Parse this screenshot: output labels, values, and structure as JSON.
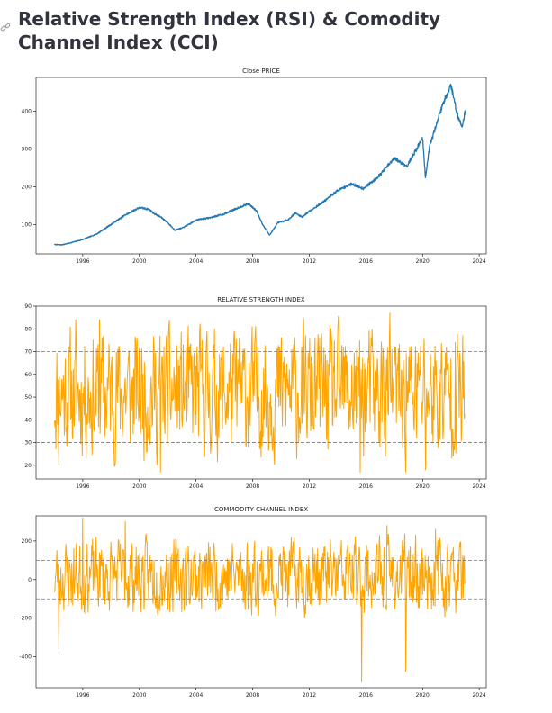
{
  "page": {
    "title": "Relative Strength Index (RSI) & Comodity Channel Index (CCI)",
    "link_icon": "link-icon"
  },
  "charts": [
    {
      "id": "price",
      "type": "line",
      "title": "Close PRICE",
      "color": "#1f77b4",
      "xlim": [
        1992.7,
        2024.5
      ],
      "ylim": [
        22,
        490
      ],
      "xticks": [
        1996,
        2000,
        2004,
        2008,
        2012,
        2016,
        2020,
        2024
      ],
      "yticks": [
        100,
        200,
        300,
        400
      ],
      "reference_lines": [],
      "anchors": [
        [
          1994.0,
          47
        ],
        [
          1994.5,
          46
        ],
        [
          1995.0,
          50
        ],
        [
          1996.0,
          60
        ],
        [
          1997.0,
          75
        ],
        [
          1998.0,
          100
        ],
        [
          1999.0,
          125
        ],
        [
          2000.0,
          145
        ],
        [
          2000.7,
          140
        ],
        [
          2001.0,
          130
        ],
        [
          2001.5,
          120
        ],
        [
          2002.0,
          105
        ],
        [
          2002.5,
          85
        ],
        [
          2003.0,
          90
        ],
        [
          2003.5,
          100
        ],
        [
          2004.0,
          112
        ],
        [
          2005.0,
          118
        ],
        [
          2006.0,
          128
        ],
        [
          2007.0,
          145
        ],
        [
          2007.7,
          155
        ],
        [
          2008.3,
          135
        ],
        [
          2008.7,
          100
        ],
        [
          2009.2,
          72
        ],
        [
          2009.8,
          105
        ],
        [
          2010.5,
          112
        ],
        [
          2011.0,
          130
        ],
        [
          2011.5,
          120
        ],
        [
          2012.0,
          135
        ],
        [
          2013.0,
          160
        ],
        [
          2014.0,
          190
        ],
        [
          2015.0,
          208
        ],
        [
          2015.8,
          195
        ],
        [
          2016.5,
          215
        ],
        [
          2017.0,
          232
        ],
        [
          2018.0,
          275
        ],
        [
          2018.9,
          255
        ],
        [
          2019.5,
          295
        ],
        [
          2020.0,
          330
        ],
        [
          2020.2,
          225
        ],
        [
          2020.5,
          305
        ],
        [
          2021.0,
          370
        ],
        [
          2021.5,
          425
        ],
        [
          2022.0,
          470
        ],
        [
          2022.5,
          385
        ],
        [
          2022.8,
          360
        ],
        [
          2023.0,
          400
        ]
      ]
    },
    {
      "id": "rsi",
      "type": "line",
      "title": "RELATIVE STRENGTH INDEX",
      "color": "#ffa500",
      "xlim": [
        1992.7,
        2024.5
      ],
      "ylim": [
        14,
        90
      ],
      "xticks": [
        1996,
        2000,
        2004,
        2008,
        2012,
        2016,
        2020,
        2024
      ],
      "yticks": [
        20,
        30,
        40,
        50,
        60,
        70,
        80,
        90
      ],
      "reference_lines": [
        30,
        70
      ]
    },
    {
      "id": "cci",
      "type": "line",
      "title": "COMMODITY CHANNEL INDEX",
      "color": "#ffa500",
      "xlim": [
        1992.7,
        2024.5
      ],
      "ylim": [
        -560,
        330
      ],
      "xticks": [
        1996,
        2000,
        2004,
        2008,
        2012,
        2016,
        2020,
        2024
      ],
      "yticks": [
        -400,
        -200,
        0,
        200
      ],
      "reference_lines": [
        -100,
        100
      ]
    }
  ],
  "chart_data": [
    {
      "type": "line",
      "title": "Close PRICE",
      "x_range": [
        1994.0,
        2023.0
      ],
      "ylim": [
        22,
        490
      ],
      "series": [
        {
          "points": [
            [
              1994.0,
              47
            ],
            [
              1995.0,
              50
            ],
            [
              1996.0,
              60
            ],
            [
              1998.0,
              100
            ],
            [
              2000.0,
              145
            ],
            [
              2002.5,
              85
            ],
            [
              2004.0,
              112
            ],
            [
              2007.7,
              155
            ],
            [
              2009.2,
              72
            ],
            [
              2011.0,
              130
            ],
            [
              2014.0,
              190
            ],
            [
              2016.5,
              215
            ],
            [
              2018.0,
              275
            ],
            [
              2020.0,
              330
            ],
            [
              2020.2,
              225
            ],
            [
              2021.0,
              370
            ],
            [
              2022.0,
              470
            ],
            [
              2022.8,
              360
            ],
            [
              2023.0,
              400
            ]
          ]
        }
      ]
    },
    {
      "type": "line",
      "title": "RELATIVE STRENGTH INDEX",
      "x_range": [
        1994.0,
        2023.0
      ],
      "ylim": [
        14,
        90
      ],
      "reference_lines": [
        30,
        70
      ],
      "approx_range": [
        16,
        87
      ]
    },
    {
      "type": "line",
      "title": "COMMODITY CHANNEL INDEX",
      "x_range": [
        1994.0,
        2023.0
      ],
      "ylim": [
        -560,
        330
      ],
      "reference_lines": [
        -100,
        100
      ],
      "approx_range": [
        -530,
        320
      ]
    }
  ]
}
